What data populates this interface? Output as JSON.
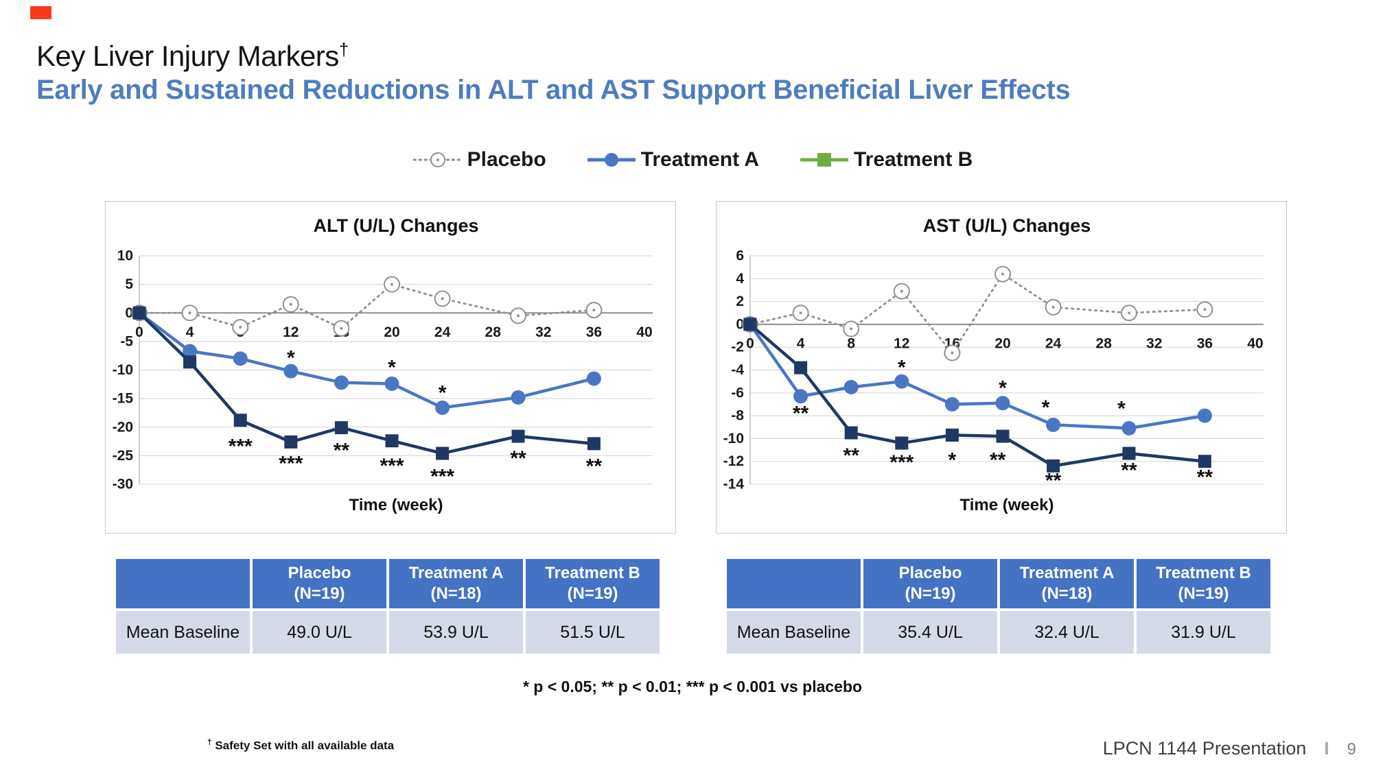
{
  "slide": {
    "title_main": "Key Liver Injury Markers",
    "title_dagger": "†",
    "subtitle": "Early and Sustained Reductions in ALT and AST Support Beneficial Liver Effects",
    "footnote_stats": "* p < 0.05; ** p < 0.01; *** p < 0.001 vs placebo",
    "footnote_safety_dagger": "†",
    "footnote_safety_text": " Safety Set with all available data",
    "footer_text": "LPCN 1144 Presentation",
    "footer_separator": "I",
    "page_number": "9"
  },
  "colors": {
    "subtitle_blue": "#4d7dbf",
    "record_flag_red": "#f63b1c",
    "placebo_gray": "#909090",
    "treatment_a_blue": "#4a76c6",
    "treatment_b_navy": "#1f3864",
    "treatment_b_legend_green": "#70ad47",
    "table_header_bg": "#4472c4",
    "table_row_bg": "#d5dae8",
    "grid_line": "#d9d9d9",
    "zero_line": "#7f7f7f",
    "axis_line": "#bfbfbf",
    "tick_text": "#1a1a1a"
  },
  "legend": [
    {
      "label": "Placebo",
      "swatch": "dotted-circle",
      "color": "#909090"
    },
    {
      "label": "Treatment A",
      "swatch": "line-circle",
      "color": "#4a76c6"
    },
    {
      "label": "Treatment B",
      "swatch": "line-square",
      "color": "#70ad47"
    }
  ],
  "chart_data": [
    {
      "id": "alt",
      "type": "line",
      "title": "ALT (U/L) Changes",
      "xlabel": "Time (week)",
      "xlim": [
        0,
        40
      ],
      "ylim": [
        -30,
        10
      ],
      "xticks": [
        0,
        4,
        8,
        12,
        16,
        20,
        24,
        28,
        32,
        36,
        40
      ],
      "yticks": [
        10,
        5,
        0,
        -5,
        -10,
        -15,
        -20,
        -25,
        -30
      ],
      "x": [
        0,
        4,
        8,
        12,
        16,
        20,
        24,
        30,
        36
      ],
      "series": [
        {
          "name": "Placebo",
          "color": "#909090",
          "marker": "open-circle",
          "dashed": true,
          "values": [
            0,
            0,
            -2.5,
            1.5,
            -2.7,
            5,
            2.5,
            -0.5,
            0.5
          ]
        },
        {
          "name": "Treatment A",
          "color": "#4a76c6",
          "marker": "circle",
          "dashed": false,
          "values": [
            0,
            -6.7,
            -8,
            -10.2,
            -12.2,
            -12.4,
            -16.6,
            -14.8,
            -11.5
          ]
        },
        {
          "name": "Treatment B",
          "color": "#1f3864",
          "marker": "square",
          "dashed": false,
          "values": [
            0,
            -8.6,
            -18.8,
            -22.6,
            -20.1,
            -22.4,
            -24.6,
            -21.6,
            -22.9
          ]
        }
      ],
      "annotations": [
        {
          "x": 12,
          "y": -7.9,
          "text": "*"
        },
        {
          "x": 20,
          "y": -9.6,
          "text": "*"
        },
        {
          "x": 24,
          "y": -14.0,
          "text": "*"
        },
        {
          "x": 8,
          "y": -23.4,
          "text": "***"
        },
        {
          "x": 12,
          "y": -26.4,
          "text": "***"
        },
        {
          "x": 16,
          "y": -24.1,
          "text": "**"
        },
        {
          "x": 20,
          "y": -26.8,
          "text": "***"
        },
        {
          "x": 24,
          "y": -28.7,
          "text": "***"
        },
        {
          "x": 30,
          "y": -25.5,
          "text": "**"
        },
        {
          "x": 36,
          "y": -26.9,
          "text": "**"
        }
      ]
    },
    {
      "id": "ast",
      "type": "line",
      "title": "AST (U/L) Changes",
      "xlabel": "Time (week)",
      "xlim": [
        0,
        40
      ],
      "ylim": [
        -14,
        6
      ],
      "xticks": [
        0,
        4,
        8,
        12,
        16,
        20,
        24,
        28,
        32,
        36,
        40
      ],
      "yticks": [
        6,
        4,
        2,
        0,
        -2,
        -4,
        -6,
        -8,
        -10,
        -12,
        -14
      ],
      "x": [
        0,
        4,
        8,
        12,
        16,
        20,
        24,
        30,
        36
      ],
      "series": [
        {
          "name": "Placebo",
          "color": "#909090",
          "marker": "open-circle",
          "dashed": true,
          "values": [
            0,
            1,
            -0.4,
            2.9,
            -2.5,
            4.4,
            1.5,
            1,
            1.3
          ]
        },
        {
          "name": "Treatment A",
          "color": "#4a76c6",
          "marker": "circle",
          "dashed": false,
          "values": [
            0,
            -6.3,
            -5.5,
            -5,
            -7,
            -6.9,
            -8.8,
            -9.1,
            -8
          ]
        },
        {
          "name": "Treatment B",
          "color": "#1f3864",
          "marker": "square",
          "dashed": false,
          "values": [
            0,
            -3.8,
            -9.5,
            -10.4,
            -9.7,
            -9.8,
            -12.4,
            -11.3,
            -12
          ]
        }
      ],
      "annotations": [
        {
          "x": 4,
          "y": -7.8,
          "text": "**"
        },
        {
          "x": 12,
          "y": -3.8,
          "text": "*"
        },
        {
          "x": 20,
          "y": -5.6,
          "text": "*"
        },
        {
          "x": 23.4,
          "y": -7.3,
          "text": "*"
        },
        {
          "x": 29.4,
          "y": -7.4,
          "text": "*"
        },
        {
          "x": 8,
          "y": -11.5,
          "text": "**"
        },
        {
          "x": 12,
          "y": -12.1,
          "text": "***"
        },
        {
          "x": 16,
          "y": -11.9,
          "text": "*"
        },
        {
          "x": 19.6,
          "y": -11.9,
          "text": "**"
        },
        {
          "x": 24,
          "y": -13.7,
          "text": "**"
        },
        {
          "x": 30,
          "y": -12.8,
          "text": "**"
        },
        {
          "x": 36,
          "y": -13.4,
          "text": "**"
        }
      ]
    }
  ],
  "tables": [
    {
      "id": "alt",
      "headers": [
        {
          "line1": "",
          "line2": ""
        },
        {
          "line1": "Placebo",
          "line2": "(N=19)"
        },
        {
          "line1": "Treatment A",
          "line2": "(N=18)"
        },
        {
          "line1": "Treatment B",
          "line2": "(N=19)"
        }
      ],
      "row_label": "Mean Baseline",
      "row_values": [
        "49.0 U/L",
        "53.9 U/L",
        "51.5 U/L"
      ]
    },
    {
      "id": "ast",
      "headers": [
        {
          "line1": "",
          "line2": ""
        },
        {
          "line1": "Placebo",
          "line2": "(N=19)"
        },
        {
          "line1": "Treatment A",
          "line2": "(N=18)"
        },
        {
          "line1": "Treatment B",
          "line2": "(N=19)"
        }
      ],
      "row_label": "Mean Baseline",
      "row_values": [
        "35.4 U/L",
        "32.4 U/L",
        "31.9 U/L"
      ]
    }
  ]
}
